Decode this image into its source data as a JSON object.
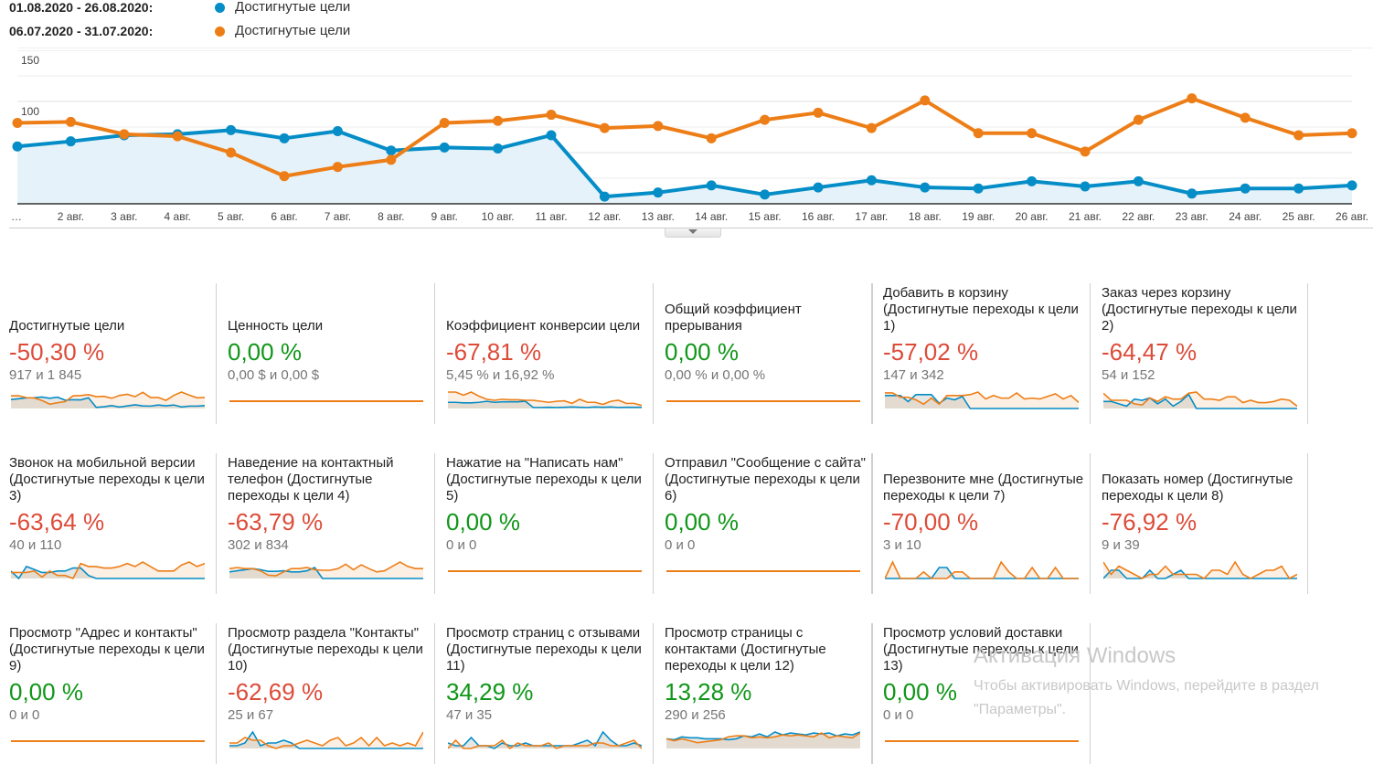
{
  "legend": [
    {
      "range": "01.08.2020 - 26.08.2020:",
      "label": "Достигнутые цели",
      "color": "#058dc7"
    },
    {
      "range": "06.07.2020 - 31.07.2020:",
      "label": "Достигнутые цели",
      "color": "#ed7e17"
    }
  ],
  "chart_data": {
    "type": "line",
    "title": "",
    "xlabel": "",
    "ylabel": "",
    "ylim": [
      0,
      150
    ],
    "yticks": [
      50,
      100,
      150
    ],
    "grid": true,
    "legend_position": "top-left",
    "categories": [
      "…",
      "2 авг.",
      "3 авг.",
      "4 авг.",
      "5 авг.",
      "6 авг.",
      "7 авг.",
      "8 авг.",
      "9 авг.",
      "10 авг.",
      "11 авг.",
      "12 авг.",
      "13 авг.",
      "14 авг.",
      "15 авг.",
      "16 авг.",
      "17 авг.",
      "18 авг.",
      "19 авг.",
      "20 авг.",
      "21 авг.",
      "22 авг.",
      "23 авг.",
      "24 авг.",
      "25 авг.",
      "26 авг."
    ],
    "series": [
      {
        "name": "01.08.2020 - 26.08.2020: Достигнутые цели",
        "color": "#058dc7",
        "area": true,
        "values": [
          56,
          61,
          67,
          68,
          72,
          64,
          71,
          52,
          55,
          54,
          67,
          7,
          11,
          18,
          9,
          16,
          23,
          16,
          15,
          22,
          17,
          22,
          10,
          15,
          15,
          18
        ]
      },
      {
        "name": "06.07.2020 - 31.07.2020: Достигнутые цели",
        "color": "#ed7e17",
        "area": false,
        "values": [
          79,
          80,
          68,
          66,
          50,
          27,
          36,
          43,
          79,
          81,
          87,
          74,
          76,
          64,
          82,
          89,
          74,
          101,
          69,
          69,
          51,
          82,
          103,
          84,
          67,
          69
        ]
      }
    ]
  },
  "cards": [
    {
      "title": "Достигнутые цели",
      "value": "-50,30 %",
      "trend": "neg",
      "compare": "917 и 1 845",
      "spark": {
        "a": [
          56,
          61,
          67,
          68,
          72,
          64,
          71,
          52,
          55,
          54,
          67,
          7,
          11,
          18,
          9,
          16,
          23,
          16,
          15,
          22,
          17,
          22,
          10,
          15,
          15,
          18
        ],
        "b": [
          79,
          80,
          68,
          66,
          50,
          27,
          36,
          43,
          79,
          81,
          87,
          74,
          76,
          64,
          82,
          89,
          74,
          101,
          69,
          69,
          51,
          82,
          103,
          84,
          67,
          69
        ]
      }
    },
    {
      "title": "Ценность цели",
      "value": "0,00 %",
      "trend": "pos",
      "compare": "0,00 $ и 0,00 $",
      "spark": null
    },
    {
      "title": "Коэффициент конверсии цели",
      "value": "-67,81 %",
      "trend": "neg",
      "compare": "5,45 % и 16,92 %",
      "spark": {
        "a": [
          6,
          6,
          5.5,
          5.5,
          6,
          7,
          6,
          6.5,
          6.5,
          6.5,
          7,
          1,
          1,
          1.2,
          1,
          1.2,
          1.5,
          1.2,
          1,
          1.5,
          1.2,
          1.5,
          1,
          1.2,
          1.2,
          1.2
        ],
        "b": [
          16,
          16,
          13,
          16,
          12,
          9,
          8,
          9,
          8.5,
          8.5,
          8,
          8,
          7,
          6,
          7,
          7.5,
          5,
          9,
          6,
          6,
          4,
          7,
          8,
          5,
          5,
          3
        ]
      }
    },
    {
      "title": "Общий коэффициент прерывания",
      "value": "0,00 %",
      "trend": "pos",
      "compare": "0,00 % и 0,00 %",
      "spark": null
    },
    {
      "title": "Добавить в корзину (Достигнутые переходы к цели 1)",
      "value": "-57,02 %",
      "trend": "neg",
      "compare": "147 и 342",
      "spark": {
        "a": [
          15,
          15,
          15,
          8,
          16,
          16,
          16,
          6,
          12,
          10,
          14,
          0,
          0,
          0,
          0,
          0,
          0,
          0,
          0,
          0,
          0,
          0,
          0,
          0,
          0,
          0
        ],
        "b": [
          18,
          18,
          13,
          13,
          10,
          5,
          12,
          5,
          15,
          15,
          15,
          16,
          19,
          11,
          15,
          12,
          12,
          18,
          11,
          12,
          11,
          14,
          17,
          11,
          15,
          7
        ]
      }
    },
    {
      "title": "Заказ через корзину (Достигнутые переходы к цели 2)",
      "value": "-64,47 %",
      "trend": "neg",
      "compare": "54 и 152",
      "spark": {
        "a": [
          6,
          6,
          4,
          2,
          8,
          7,
          9,
          4,
          8,
          2,
          6,
          12,
          0,
          0,
          0,
          0,
          0,
          0,
          0,
          0,
          0,
          0,
          0,
          0,
          0,
          0
        ],
        "b": [
          13,
          7,
          7,
          7,
          4,
          3,
          9,
          6,
          10,
          8,
          8,
          13,
          14,
          8,
          8,
          7,
          10,
          10,
          5,
          7,
          5,
          5,
          6,
          8,
          7,
          2
        ]
      }
    },
    {
      "title": "Звонок на мобильной версии (Достигнутые переходы к цели 3)",
      "value": "-63,64 %",
      "trend": "neg",
      "compare": "40 и 110",
      "spark": {
        "a": [
          5,
          0,
          8,
          6,
          4,
          4,
          5,
          5,
          7,
          7,
          2,
          0,
          0,
          0,
          0,
          0,
          0,
          0,
          0,
          0,
          0,
          0,
          0,
          0,
          0,
          0
        ],
        "b": [
          4,
          4,
          4,
          5,
          1,
          5,
          2,
          2,
          0,
          10,
          8,
          8,
          7,
          7,
          8,
          10,
          8,
          11,
          8,
          5,
          5,
          5,
          9,
          11,
          8,
          10
        ]
      }
    },
    {
      "title": "Наведение на контактный телефон (Достигнутые переходы к цели 4)",
      "value": "-63,79 %",
      "trend": "neg",
      "compare": "302 и 834",
      "spark": {
        "a": [
          12,
          14,
          16,
          18,
          16,
          13,
          13,
          14,
          12,
          12,
          14,
          20,
          0,
          0,
          0,
          0,
          0,
          0,
          0,
          0,
          0,
          0,
          0,
          0,
          0,
          0
        ],
        "b": [
          18,
          20,
          18,
          18,
          14,
          6,
          5,
          12,
          18,
          18,
          20,
          16,
          15,
          15,
          18,
          26,
          16,
          25,
          18,
          12,
          14,
          22,
          30,
          22,
          18,
          18
        ]
      }
    },
    {
      "title": "Нажатие на \"Написать нам\" (Достигнутые переходы к цели 5)",
      "value": "0,00 %",
      "trend": "pos",
      "compare": "0 и 0",
      "spark": null
    },
    {
      "title": "Отправил \"Сообщение с сайта\" (Достигнутые переходы к цели 6)",
      "value": "0,00 %",
      "trend": "pos",
      "compare": "0 и 0",
      "spark": null
    },
    {
      "title": "Перезвоните мне (Достигнутые переходы к цели 7)",
      "value": "-70,00 %",
      "trend": "neg",
      "compare": "3 и 10",
      "spark": {
        "a": [
          0,
          0,
          0,
          0,
          0,
          0,
          0,
          1,
          1,
          0,
          0,
          0,
          0,
          0,
          0,
          0,
          0,
          0,
          0,
          0,
          0,
          0,
          0,
          0,
          0,
          0
        ],
        "b": [
          0,
          1.5,
          0,
          0,
          0,
          0.6,
          0,
          0,
          0,
          0.6,
          0.6,
          0,
          0,
          0,
          0,
          1.5,
          0.6,
          0,
          0,
          1,
          0,
          0,
          1,
          0,
          0,
          0
        ]
      }
    },
    {
      "title": "Показать номер (Достигнутые переходы к цели 8)",
      "value": "-76,92 %",
      "trend": "neg",
      "compare": "9 и 39",
      "spark": {
        "a": [
          0,
          2,
          2,
          0,
          0,
          0,
          2,
          0,
          0,
          1,
          2,
          0,
          0,
          0,
          0,
          0,
          0,
          0,
          0,
          0,
          0,
          0,
          0,
          0,
          0,
          0
        ],
        "b": [
          4,
          1,
          3,
          2,
          1,
          0,
          1,
          1,
          3,
          1,
          1,
          1,
          1,
          0,
          2,
          2,
          1,
          4,
          1,
          0,
          1,
          2,
          2,
          3,
          0,
          1
        ]
      }
    },
    {
      "title": "Просмотр \"Адрес и контакты\" (Достигнутые переходы к цели 9)",
      "value": "0,00 %",
      "trend": "pos",
      "compare": "0 и 0",
      "spark": null
    },
    {
      "title": "Просмотр раздела \"Контакты\" (Достигнутые переходы к цели 10)",
      "value": "-62,69 %",
      "trend": "neg",
      "compare": "25 и 67",
      "spark": {
        "a": [
          1,
          1,
          2,
          6,
          1,
          2,
          2,
          3,
          2,
          0,
          0,
          0,
          0,
          0,
          0,
          0,
          0,
          0,
          0,
          0,
          0,
          0,
          0,
          0,
          0,
          0
        ],
        "b": [
          2,
          2,
          4,
          3,
          3,
          1,
          0,
          1,
          1,
          2,
          3,
          2,
          1,
          3,
          4,
          1,
          2,
          4,
          1,
          4,
          1,
          2,
          1,
          2,
          1,
          6
        ]
      }
    },
    {
      "title": "Просмотр страниц с отзывами (Достигнутые переходы к цели 11)",
      "value": "34,29 %",
      "trend": "pos",
      "compare": "47 и 35",
      "spark": {
        "a": [
          2,
          1,
          1,
          4,
          1,
          1,
          0,
          2,
          1,
          1,
          2,
          1,
          1,
          1,
          1,
          1,
          1,
          2,
          3,
          1,
          6,
          3,
          1,
          1,
          2,
          1
        ],
        "b": [
          0,
          3,
          0,
          0,
          1,
          1,
          1,
          3,
          0,
          2,
          1,
          1,
          1,
          2,
          0,
          1,
          1,
          1,
          1,
          2,
          2,
          1,
          1,
          2,
          3,
          0
        ]
      }
    },
    {
      "title": "Просмотр страницы с контактами (Достигнутые переходы к цели 12)",
      "value": "13,28 %",
      "trend": "pos",
      "compare": "290 и 256",
      "spark": {
        "a": [
          10,
          9,
          12,
          11,
          11,
          10,
          10,
          10,
          9,
          10,
          13,
          12,
          15,
          12,
          17,
          14,
          16,
          15,
          14,
          16,
          15,
          16,
          13,
          15,
          14,
          17
        ],
        "b": [
          10,
          8,
          10,
          8,
          6,
          7,
          8,
          9,
          12,
          13,
          13,
          11,
          12,
          11,
          12,
          14,
          13,
          14,
          13,
          12,
          16,
          11,
          13,
          12,
          11,
          16
        ]
      }
    },
    {
      "title": "Просмотр условий доставки (Достигнутые переходы к цели 13)",
      "value": "0,00 %",
      "trend": "pos",
      "compare": "0 и 0",
      "spark": null
    }
  ],
  "watermark": {
    "title": "Активация Windows",
    "text": "Чтобы активировать Windows, перейдите в раздел \"Параметры\"."
  }
}
